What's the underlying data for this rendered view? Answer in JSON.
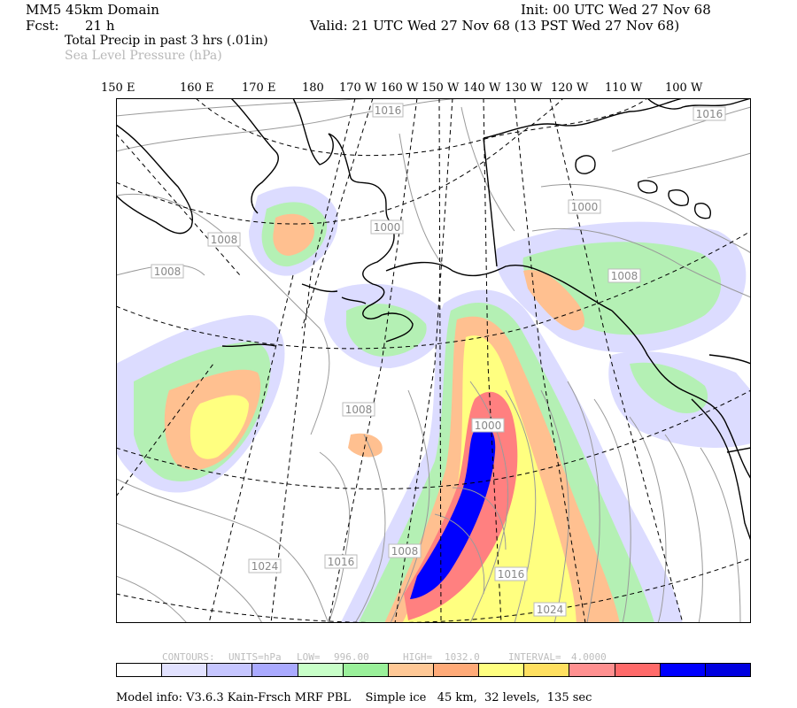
{
  "header": {
    "domain": "MM5 45km Domain",
    "init": "Init: 00 UTC Wed 27 Nov 68",
    "fcst_label": "Fcst:",
    "fcst_value": "21 h",
    "valid": "Valid: 21 UTC Wed 27 Nov 68 (13 PST Wed 27 Nov 68)",
    "field1": "Total Precip in past 3 hrs (.01in)",
    "field2": "Sea Level Pressure (hPa)"
  },
  "longitudes": [
    "150 E",
    "160 E",
    "170 E",
    "180",
    "170 W",
    "160 W",
    "150 W",
    "140 W",
    "130 W",
    "120 W",
    "110 W",
    "100 W"
  ],
  "pressure_labels": [
    "1016",
    "1016",
    "1000",
    "1008",
    "1008",
    "1000",
    "1008",
    "1008",
    "1000",
    "1008",
    "1016",
    "1016",
    "1024",
    "1024"
  ],
  "contour_info": {
    "contours": "CONTOURS:",
    "units": "UNITS=hPa",
    "low": "LOW=",
    "low_value": "996.00",
    "high": "HIGH=",
    "high_value": "1032.0",
    "interval": "INTERVAL=",
    "interval_value": "4.0000"
  },
  "colorbar": [
    "#ffffff",
    "#e2e2ff",
    "#c6c6ff",
    "#aaaaff",
    "#c8ffc8",
    "#9af09a",
    "#ffc896",
    "#ffaa78",
    "#ffff80",
    "#ffe060",
    "#ff9090",
    "#ff6a6a",
    "#0000ff",
    "#0000e0"
  ],
  "colors": {
    "land_outline": "#000000",
    "grid": "#000000",
    "isobar": "#9a9a9a"
  },
  "footer": "Model info: V3.6.3 Kain-Frsch MRF PBL    Simple ice   45 km,  32 levels,  135 sec"
}
